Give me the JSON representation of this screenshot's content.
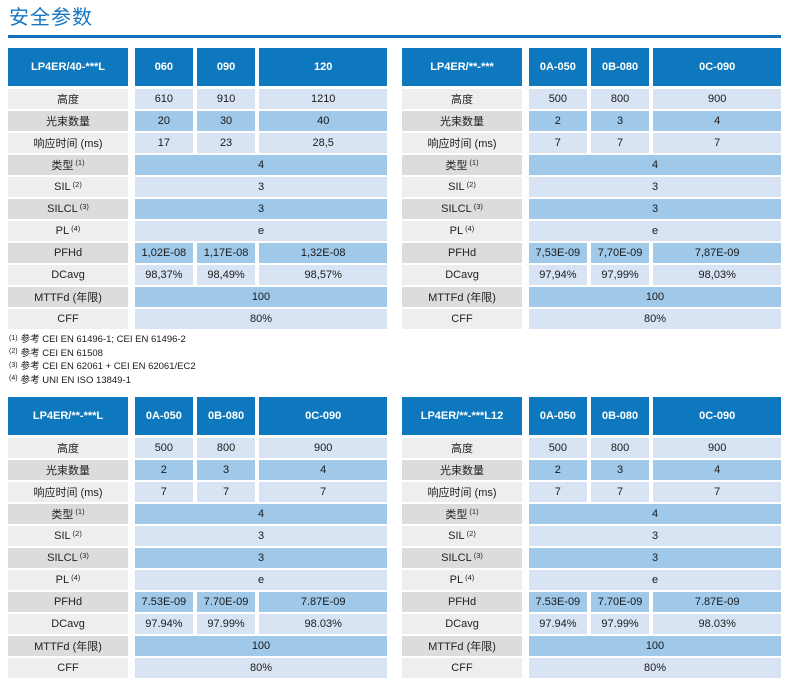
{
  "page": {
    "title": "安全参数"
  },
  "colors": {
    "header_bg": "#0d78bd",
    "row_light": "#d8e4f4",
    "row_medium": "#9fc8e9",
    "label_light": "#eeeeee",
    "label_dark": "#dcdcdc",
    "title_blue": "#1777c3",
    "rule_blue": "#1470bd"
  },
  "tables": [
    {
      "model": "LP4ER/40-***L",
      "columns": [
        "060",
        "090",
        "120"
      ],
      "rows": [
        {
          "label": "高度",
          "sup": "",
          "values": [
            "610",
            "910",
            "1210"
          ]
        },
        {
          "label": "光束数量",
          "sup": "",
          "values": [
            "20",
            "30",
            "40"
          ]
        },
        {
          "label": "响应时间 (ms)",
          "sup": "",
          "values": [
            "17",
            "23",
            "28,5"
          ]
        },
        {
          "label": "类型",
          "sup": "(1)",
          "values": [
            "4"
          ]
        },
        {
          "label": "SIL",
          "sup": "(2)",
          "values": [
            "3"
          ]
        },
        {
          "label": "SILCL",
          "sup": "(3)",
          "values": [
            "3"
          ]
        },
        {
          "label": "PL",
          "sup": "(4)",
          "values": [
            "e"
          ]
        },
        {
          "label": "PFHd",
          "sup": "",
          "values": [
            "1,02E-08",
            "1,17E-08",
            "1,32E-08"
          ]
        },
        {
          "label": "DCavg",
          "sup": "",
          "values": [
            "98,37%",
            "98,49%",
            "98,57%"
          ]
        },
        {
          "label": "MTTFd (年限)",
          "sup": "",
          "values": [
            "100"
          ]
        },
        {
          "label": "CFF",
          "sup": "",
          "values": [
            "80%"
          ]
        }
      ]
    },
    {
      "model": "LP4ER/**-***",
      "columns": [
        "0A-050",
        "0B-080",
        "0C-090"
      ],
      "rows": [
        {
          "label": "高度",
          "sup": "",
          "values": [
            "500",
            "800",
            "900"
          ]
        },
        {
          "label": "光束数量",
          "sup": "",
          "values": [
            "2",
            "3",
            "4"
          ]
        },
        {
          "label": "响应时间 (ms)",
          "sup": "",
          "values": [
            "7",
            "7",
            "7"
          ]
        },
        {
          "label": "类型",
          "sup": "(1)",
          "values": [
            "4"
          ]
        },
        {
          "label": "SIL",
          "sup": "(2)",
          "values": [
            "3"
          ]
        },
        {
          "label": "SILCL",
          "sup": "(3)",
          "values": [
            "3"
          ]
        },
        {
          "label": "PL",
          "sup": "(4)",
          "values": [
            "e"
          ]
        },
        {
          "label": "PFHd",
          "sup": "",
          "values": [
            "7,53E-09",
            "7,70E-09",
            "7,87E-09"
          ]
        },
        {
          "label": "DCavg",
          "sup": "",
          "values": [
            "97,94%",
            "97,99%",
            "98,03%"
          ]
        },
        {
          "label": "MTTFd (年限)",
          "sup": "",
          "values": [
            "100"
          ]
        },
        {
          "label": "CFF",
          "sup": "",
          "values": [
            "80%"
          ]
        }
      ]
    },
    {
      "model": "LP4ER/**-***L",
      "columns": [
        "0A-050",
        "0B-080",
        "0C-090"
      ],
      "rows": [
        {
          "label": "高度",
          "sup": "",
          "values": [
            "500",
            "800",
            "900"
          ]
        },
        {
          "label": "光束数量",
          "sup": "",
          "values": [
            "2",
            "3",
            "4"
          ]
        },
        {
          "label": "响应时间 (ms)",
          "sup": "",
          "values": [
            "7",
            "7",
            "7"
          ]
        },
        {
          "label": "类型",
          "sup": "(1)",
          "values": [
            "4"
          ]
        },
        {
          "label": "SIL",
          "sup": "(2)",
          "values": [
            "3"
          ]
        },
        {
          "label": "SILCL",
          "sup": "(3)",
          "values": [
            "3"
          ]
        },
        {
          "label": "PL",
          "sup": "(4)",
          "values": [
            "e"
          ]
        },
        {
          "label": "PFHd",
          "sup": "",
          "values": [
            "7.53E-09",
            "7.70E-09",
            "7.87E-09"
          ]
        },
        {
          "label": "DCavg",
          "sup": "",
          "values": [
            "97.94%",
            "97.99%",
            "98.03%"
          ]
        },
        {
          "label": "MTTFd (年限)",
          "sup": "",
          "values": [
            "100"
          ]
        },
        {
          "label": "CFF",
          "sup": "",
          "values": [
            "80%"
          ]
        }
      ]
    },
    {
      "model": "LP4ER/**-***L12",
      "columns": [
        "0A-050",
        "0B-080",
        "0C-090"
      ],
      "rows": [
        {
          "label": "高度",
          "sup": "",
          "values": [
            "500",
            "800",
            "900"
          ]
        },
        {
          "label": "光束数量",
          "sup": "",
          "values": [
            "2",
            "3",
            "4"
          ]
        },
        {
          "label": "响应时间 (ms)",
          "sup": "",
          "values": [
            "7",
            "7",
            "7"
          ]
        },
        {
          "label": "类型",
          "sup": "(1)",
          "values": [
            "4"
          ]
        },
        {
          "label": "SIL",
          "sup": "(2)",
          "values": [
            "3"
          ]
        },
        {
          "label": "SILCL",
          "sup": "(3)",
          "values": [
            "3"
          ]
        },
        {
          "label": "PL",
          "sup": "(4)",
          "values": [
            "e"
          ]
        },
        {
          "label": "PFHd",
          "sup": "",
          "values": [
            "7.53E-09",
            "7.70E-09",
            "7.87E-09"
          ]
        },
        {
          "label": "DCavg",
          "sup": "",
          "values": [
            "97.94%",
            "97.99%",
            "98.03%"
          ]
        },
        {
          "label": "MTTFd (年限)",
          "sup": "",
          "values": [
            "100"
          ]
        },
        {
          "label": "CFF",
          "sup": "",
          "values": [
            "80%"
          ]
        }
      ]
    }
  ],
  "footnotes": [
    {
      "sup": "(1)",
      "text": "参考 CEI EN 61496-1; CEI EN 61496-2"
    },
    {
      "sup": "(2)",
      "text": "参考 CEI EN 61508"
    },
    {
      "sup": "(3)",
      "text": "参考 CEI EN 62061 + CEI EN 62061/EC2"
    },
    {
      "sup": "(4)",
      "text": "参考 UNI EN ISO 13849-1"
    }
  ]
}
